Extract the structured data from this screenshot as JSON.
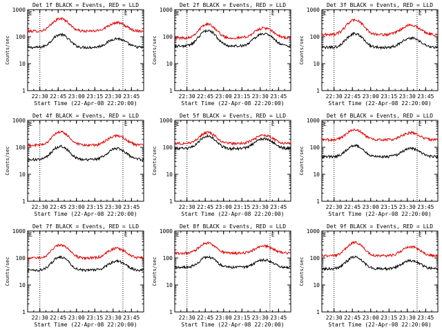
{
  "colors": {
    "events": "#000000",
    "lld": "#e00000",
    "background": "#ffffff"
  },
  "chart_data": [
    {
      "type": "line",
      "title": "Det 1f BLACK = Events, RED = LLD",
      "xlabel": "Start Time (22-Apr-08 22:20:00)",
      "ylabel": "Counts/sec",
      "yscale": "log",
      "ylim": [
        1,
        1000
      ],
      "y_ticks": [
        "1",
        "10",
        "100",
        "1000"
      ],
      "x_ticks": [
        "22:30",
        "22:45",
        "23:00",
        "23:15",
        "23:30",
        "23:45"
      ],
      "xlim_minutes": [
        0,
        95
      ],
      "flag_label": "E",
      "vertical_markers_minutes": [
        10,
        78
      ],
      "series": [
        {
          "name": "Events",
          "color": "#000000",
          "base": 40,
          "peak1": {
            "x": 27,
            "y": 120
          },
          "peak2": {
            "x": 73,
            "y": 85
          }
        },
        {
          "name": "LLD",
          "color": "#e00000",
          "base": 160,
          "peak1": {
            "x": 27,
            "y": 470
          },
          "peak2": {
            "x": 73,
            "y": 330
          }
        }
      ]
    },
    {
      "type": "line",
      "title": "Det 2f BLACK = Events, RED = LLD",
      "xlabel": "Start Time (22-Apr-08 22:20:00)",
      "ylabel": "Counts/sec",
      "yscale": "log",
      "ylim": [
        1,
        1000
      ],
      "y_ticks": [
        "1",
        "10",
        "100",
        "1000"
      ],
      "x_ticks": [
        "22:30",
        "22:45",
        "23:00",
        "23:15",
        "23:30",
        "23:45"
      ],
      "xlim_minutes": [
        0,
        95
      ],
      "flag_label": "E",
      "vertical_markers_minutes": [
        10,
        78
      ],
      "series": [
        {
          "name": "Events",
          "color": "#000000",
          "base": 45,
          "peak1": {
            "x": 27,
            "y": 170
          },
          "peak2": {
            "x": 73,
            "y": 130
          }
        },
        {
          "name": "LLD",
          "color": "#e00000",
          "base": 90,
          "peak1": {
            "x": 27,
            "y": 290
          },
          "peak2": {
            "x": 73,
            "y": 210
          }
        }
      ]
    },
    {
      "type": "line",
      "title": "Det 3f BLACK = Events, RED = LLD",
      "xlabel": "Start Time (22-Apr-08 22:20:00)",
      "ylabel": "Counts/sec",
      "yscale": "log",
      "ylim": [
        1,
        1000
      ],
      "y_ticks": [
        "1",
        "10",
        "100",
        "1000"
      ],
      "x_ticks": [
        "22:30",
        "22:45",
        "23:00",
        "23:15",
        "23:30",
        "23:45"
      ],
      "xlim_minutes": [
        0,
        95
      ],
      "flag_label": "E",
      "vertical_markers_minutes": [
        10,
        78
      ],
      "series": [
        {
          "name": "Events",
          "color": "#000000",
          "base": 40,
          "peak1": {
            "x": 27,
            "y": 130
          },
          "peak2": {
            "x": 73,
            "y": 90
          }
        },
        {
          "name": "LLD",
          "color": "#e00000",
          "base": 120,
          "peak1": {
            "x": 27,
            "y": 420
          },
          "peak2": {
            "x": 73,
            "y": 270
          }
        }
      ]
    },
    {
      "type": "line",
      "title": "Det 4f BLACK = Events, RED = LLD",
      "xlabel": "Start Time (22-Apr-08 22:20:00)",
      "ylabel": "Counts/sec",
      "yscale": "log",
      "ylim": [
        1,
        1000
      ],
      "y_ticks": [
        "1",
        "10",
        "100",
        "1000"
      ],
      "x_ticks": [
        "22:30",
        "22:45",
        "23:00",
        "23:15",
        "23:30",
        "23:45"
      ],
      "xlim_minutes": [
        0,
        95
      ],
      "flag_label": "E",
      "vertical_markers_minutes": [
        10,
        78
      ],
      "series": [
        {
          "name": "Events",
          "color": "#000000",
          "base": 35,
          "peak1": {
            "x": 27,
            "y": 110
          },
          "peak2": {
            "x": 73,
            "y": 90
          }
        },
        {
          "name": "LLD",
          "color": "#e00000",
          "base": 120,
          "peak1": {
            "x": 27,
            "y": 370
          },
          "peak2": {
            "x": 73,
            "y": 270
          }
        }
      ]
    },
    {
      "type": "line",
      "title": "Det 5f BLACK = Events, RED = LLD",
      "xlabel": "Start Time (22-Apr-08 22:20:00)",
      "ylabel": "Counts/sec",
      "yscale": "log",
      "ylim": [
        1,
        1000
      ],
      "y_ticks": [
        "1",
        "10",
        "100",
        "1000"
      ],
      "x_ticks": [
        "22:30",
        "22:45",
        "23:00",
        "23:15",
        "23:30",
        "23:45"
      ],
      "xlim_minutes": [
        0,
        95
      ],
      "flag_label": "E",
      "vertical_markers_minutes": [
        10,
        78
      ],
      "series": [
        {
          "name": "Events",
          "color": "#000000",
          "base": 90,
          "peak1": {
            "x": 27,
            "y": 260
          },
          "peak2": {
            "x": 73,
            "y": 210
          }
        },
        {
          "name": "LLD",
          "color": "#e00000",
          "base": 140,
          "peak1": {
            "x": 27,
            "y": 350
          },
          "peak2": {
            "x": 73,
            "y": 280
          }
        }
      ]
    },
    {
      "type": "line",
      "title": "Det 6f BLACK = Events, RED = LLD",
      "xlabel": "Start Time (22-Apr-08 22:20:00)",
      "ylabel": "Counts/sec",
      "yscale": "log",
      "ylim": [
        1,
        1000
      ],
      "y_ticks": [
        "1",
        "10",
        "100",
        "1000"
      ],
      "x_ticks": [
        "22:30",
        "22:45",
        "23:00",
        "23:15",
        "23:30",
        "23:45"
      ],
      "xlim_minutes": [
        0,
        95
      ],
      "flag_label": "E",
      "vertical_markers_minutes": [
        10,
        78
      ],
      "series": [
        {
          "name": "Events",
          "color": "#000000",
          "base": 45,
          "peak1": {
            "x": 27,
            "y": 120
          },
          "peak2": {
            "x": 73,
            "y": 90
          }
        },
        {
          "name": "LLD",
          "color": "#e00000",
          "base": 190,
          "peak1": {
            "x": 27,
            "y": 460
          },
          "peak2": {
            "x": 73,
            "y": 350
          }
        }
      ]
    },
    {
      "type": "line",
      "title": "Det 7f BLACK = Events, RED = LLD",
      "xlabel": "Start Time (22-Apr-08 22:20:00)",
      "ylabel": "Counts/sec",
      "yscale": "log",
      "ylim": [
        1,
        1000
      ],
      "y_ticks": [
        "1",
        "10",
        "100",
        "1000"
      ],
      "x_ticks": [
        "22:30",
        "22:45",
        "23:00",
        "23:15",
        "23:30",
        "23:45"
      ],
      "xlim_minutes": [
        0,
        95
      ],
      "flag_label": "E",
      "vertical_markers_minutes": [
        10,
        78
      ],
      "series": [
        {
          "name": "Events",
          "color": "#000000",
          "base": 35,
          "peak1": {
            "x": 27,
            "y": 110
          },
          "peak2": {
            "x": 73,
            "y": 75
          }
        },
        {
          "name": "LLD",
          "color": "#e00000",
          "base": 100,
          "peak1": {
            "x": 27,
            "y": 310
          },
          "peak2": {
            "x": 73,
            "y": 230
          }
        }
      ]
    },
    {
      "type": "line",
      "title": "Det 8f BLACK = Events, RED = LLD",
      "xlabel": "Start Time (22-Apr-08 22:20:00)",
      "ylabel": "Counts/sec",
      "yscale": "log",
      "ylim": [
        1,
        1000
      ],
      "y_ticks": [
        "1",
        "10",
        "100",
        "1000"
      ],
      "x_ticks": [
        "22:30",
        "22:45",
        "23:00",
        "23:15",
        "23:30",
        "23:45"
      ],
      "xlim_minutes": [
        0,
        95
      ],
      "flag_label": "E",
      "vertical_markers_minutes": [
        10,
        78
      ],
      "series": [
        {
          "name": "Events",
          "color": "#000000",
          "base": 45,
          "peak1": {
            "x": 27,
            "y": 110
          },
          "peak2": {
            "x": 73,
            "y": 85
          }
        },
        {
          "name": "LLD",
          "color": "#e00000",
          "base": 150,
          "peak1": {
            "x": 27,
            "y": 360
          },
          "peak2": {
            "x": 73,
            "y": 280
          }
        }
      ]
    },
    {
      "type": "line",
      "title": "Det 9f BLACK = Events, RED = LLD",
      "xlabel": "Start Time (22-Apr-08 22:20:00)",
      "ylabel": "Counts/sec",
      "yscale": "log",
      "ylim": [
        1,
        1000
      ],
      "y_ticks": [
        "1",
        "10",
        "100",
        "1000"
      ],
      "x_ticks": [
        "22:30",
        "22:45",
        "23:00",
        "23:15",
        "23:30",
        "23:45"
      ],
      "xlim_minutes": [
        0,
        95
      ],
      "flag_label": "E",
      "vertical_markers_minutes": [
        10,
        78
      ],
      "series": [
        {
          "name": "Events",
          "color": "#000000",
          "base": 40,
          "peak1": {
            "x": 27,
            "y": 110
          },
          "peak2": {
            "x": 73,
            "y": 80
          }
        },
        {
          "name": "LLD",
          "color": "#e00000",
          "base": 120,
          "peak1": {
            "x": 27,
            "y": 380
          },
          "peak2": {
            "x": 73,
            "y": 260
          }
        }
      ]
    }
  ]
}
